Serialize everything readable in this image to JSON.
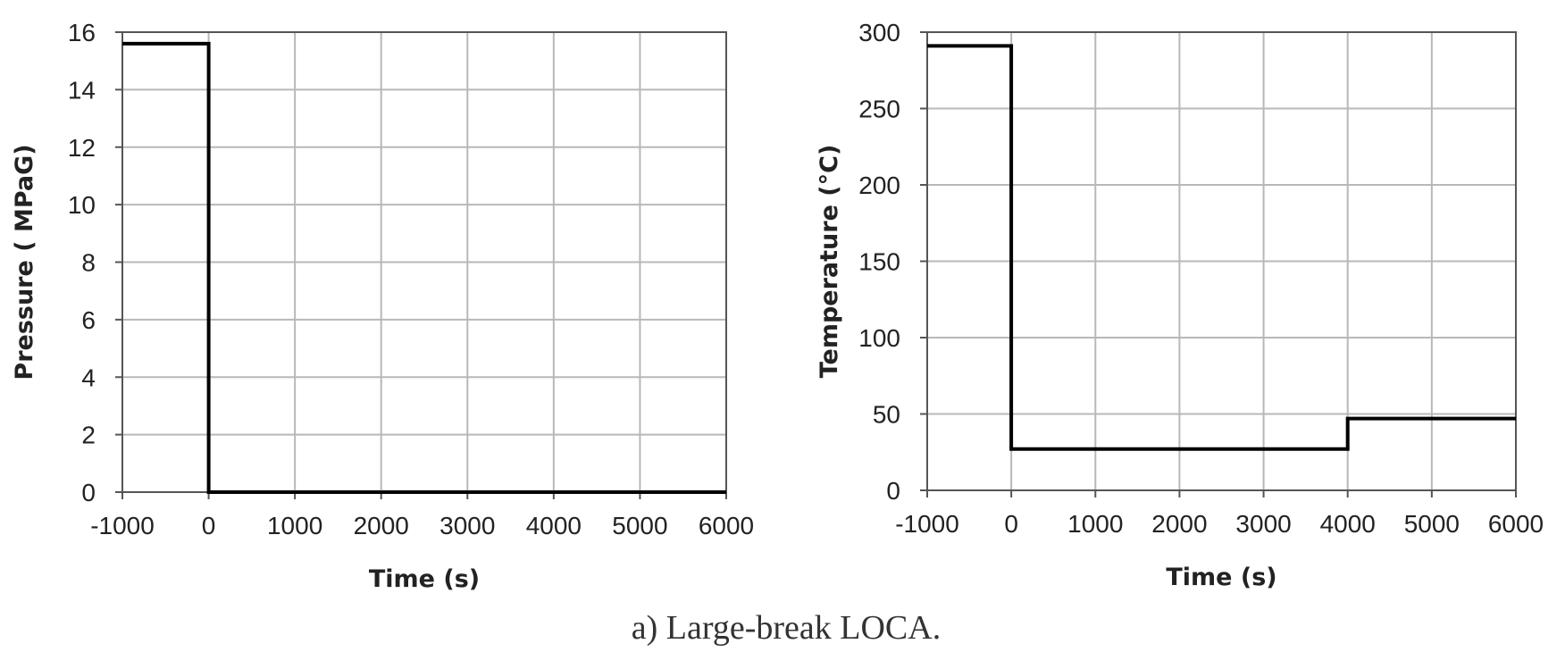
{
  "caption": "a) Large-break LOCA.",
  "chart_data": [
    {
      "type": "line",
      "title": "",
      "xlabel": "Time (s)",
      "ylabel": "Pressure ( MPaG)",
      "xlim": [
        -1000,
        6000
      ],
      "ylim": [
        0,
        16
      ],
      "xticks": [
        -1000,
        0,
        1000,
        2000,
        3000,
        4000,
        5000,
        6000
      ],
      "yticks": [
        0,
        2,
        4,
        6,
        8,
        10,
        12,
        14,
        16
      ],
      "grid": true,
      "legend": "none",
      "series": [
        {
          "x": [
            -1000,
            0,
            0,
            6000
          ],
          "y": [
            15.6,
            15.6,
            0,
            0
          ]
        }
      ]
    },
    {
      "type": "line",
      "title": "",
      "xlabel": "Time (s)",
      "ylabel": "Temperature (°C)",
      "xlim": [
        -1000,
        6000
      ],
      "ylim": [
        0,
        300
      ],
      "xticks": [
        -1000,
        0,
        1000,
        2000,
        3000,
        4000,
        5000,
        6000
      ],
      "yticks": [
        0,
        50,
        100,
        150,
        200,
        250,
        300
      ],
      "grid": true,
      "legend": "none",
      "series": [
        {
          "x": [
            -1000,
            0,
            0,
            4000,
            4000,
            6000
          ],
          "y": [
            291,
            291,
            27,
            27,
            47,
            47
          ]
        }
      ]
    }
  ],
  "colors": {
    "line": "#000000",
    "grid": "#b8b8b8",
    "frame": "#555555",
    "text": "#222222"
  }
}
